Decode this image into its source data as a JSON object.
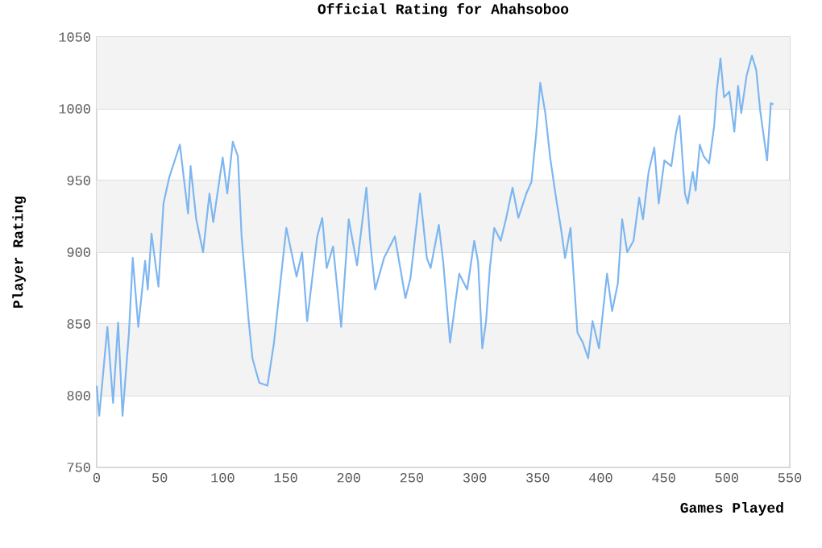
{
  "chart_data": {
    "type": "line",
    "title": "Official Rating for Ahahsoboo",
    "xlabel": "Games Played",
    "ylabel": "Player Rating",
    "xlim": [
      0,
      550
    ],
    "xticks": [
      0,
      50,
      100,
      150,
      200,
      250,
      300,
      350,
      400,
      450,
      500,
      550
    ],
    "ylim": [
      750,
      1050
    ],
    "yticks": [
      750,
      800,
      850,
      900,
      950,
      1000,
      1050
    ],
    "grid": "y",
    "marker": "none",
    "line_style": "solid",
    "bands": [
      {
        "axis": "y",
        "from": 1000,
        "to": 1050,
        "color": "#f3f3f3"
      },
      {
        "axis": "y",
        "from": 900,
        "to": 950,
        "color": "#f3f3f3"
      },
      {
        "axis": "y",
        "from": 800,
        "to": 850,
        "color": "#f3f3f3"
      }
    ],
    "series": [
      {
        "color": "#7db6f0",
        "x": [
          0,
          2,
          8.5,
          13,
          17,
          20.5,
          25.6,
          28.6,
          33,
          38.4,
          40.5,
          43.5,
          49,
          53,
          57.5,
          66,
          69.5,
          72.5,
          74.5,
          79,
          84.4,
          89.5,
          92.5,
          100,
          103.6,
          108,
          112,
          115,
          120.6,
          123.6,
          129,
          135.5,
          140.7,
          147,
          150.5,
          158.6,
          163,
          167,
          175,
          179,
          182.5,
          187.6,
          194,
          200,
          206.6,
          214,
          217,
          221,
          228,
          236.6,
          245,
          249,
          256.6,
          262,
          265,
          271.5,
          275,
          280.4,
          287.7,
          294,
          299.6,
          302.7,
          306,
          309,
          312,
          315.5,
          320.6,
          325,
          330,
          334.6,
          341,
          345,
          348.7,
          352,
          356,
          360,
          364.5,
          368.7,
          371.7,
          376,
          381.5,
          385.8,
          390,
          393.5,
          398.6,
          405,
          409,
          413.5,
          417,
          421,
          426,
          430.5,
          433.5,
          438,
          442.5,
          446,
          450.5,
          456,
          459.5,
          462.5,
          466.8,
          469,
          473,
          475.3,
          478.6,
          481.6,
          486,
          490,
          492,
          495,
          497.8,
          502,
          506,
          509,
          511.5,
          515.7,
          520,
          523.4,
          526.5,
          532,
          535,
          537
        ],
        "values": [
          807,
          786,
          848,
          795,
          851,
          786,
          844,
          896,
          848,
          894,
          874,
          913,
          876,
          934,
          952,
          975,
          949,
          927,
          960,
          923,
          900,
          941,
          921,
          966,
          941,
          977,
          967,
          911,
          852,
          826,
          809,
          807,
          837,
          889,
          917,
          883,
          900,
          852,
          911,
          924,
          889,
          904,
          848,
          923,
          891,
          945,
          908,
          874,
          896,
          911,
          868,
          882,
          941,
          896,
          889,
          919,
          893,
          837,
          885,
          874,
          908,
          893,
          833,
          852,
          889,
          917,
          908,
          924,
          945,
          924,
          941,
          949,
          982,
          1018,
          997,
          965,
          938,
          915,
          896,
          917,
          844,
          837,
          826,
          852,
          833,
          885,
          859,
          878,
          923,
          900,
          908,
          938,
          923,
          956,
          973,
          934,
          964,
          960,
          982,
          995,
          941,
          934,
          956,
          943,
          975,
          967,
          962,
          988,
          1012,
          1035,
          1008,
          1012,
          984,
          1016,
          997,
          1023,
          1037,
          1027,
          999,
          964,
          1004,
          1003
        ]
      }
    ]
  }
}
